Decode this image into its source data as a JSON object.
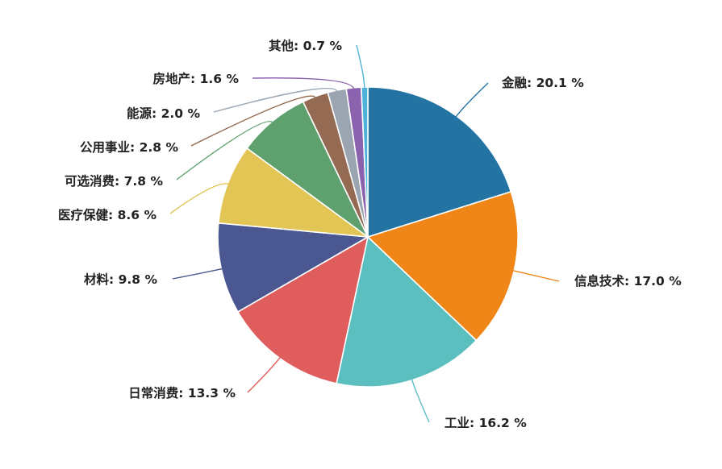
{
  "chart_data": {
    "type": "pie",
    "title": "",
    "categories": [
      "金融",
      "信息技术",
      "工业",
      "日常消费",
      "材料",
      "医疗保健",
      "可选消费",
      "公用事业",
      "能源",
      "房地产",
      "其他"
    ],
    "values": [
      20.1,
      17.0,
      16.2,
      13.3,
      9.8,
      8.6,
      7.8,
      2.8,
      2.0,
      1.6,
      0.7
    ],
    "unit": "%",
    "colors": [
      "#2474a3",
      "#f08518",
      "#5bbebf",
      "#e05d5d",
      "#4a5790",
      "#e3c555",
      "#5ea06e",
      "#946a52",
      "#9aa5b1",
      "#8b62ad",
      "#4fb3d9"
    ],
    "labels": [
      {
        "name": "金融",
        "value": "20.1 %"
      },
      {
        "name": "信息技术",
        "value": "17.0 %"
      },
      {
        "name": "工业",
        "value": "16.2 %"
      },
      {
        "name": "日常消费",
        "value": "13.3 %"
      },
      {
        "name": "材料",
        "value": "9.8 %"
      },
      {
        "name": "医疗保健",
        "value": "8.6 %"
      },
      {
        "name": "可选消费",
        "value": "7.8 %"
      },
      {
        "name": "公用事业",
        "value": "2.8 %"
      },
      {
        "name": "能源",
        "value": "2.0 %"
      },
      {
        "name": "房地产",
        "value": "1.6 %"
      },
      {
        "name": "其他",
        "value": "0.7 %"
      }
    ],
    "legend": "none"
  }
}
